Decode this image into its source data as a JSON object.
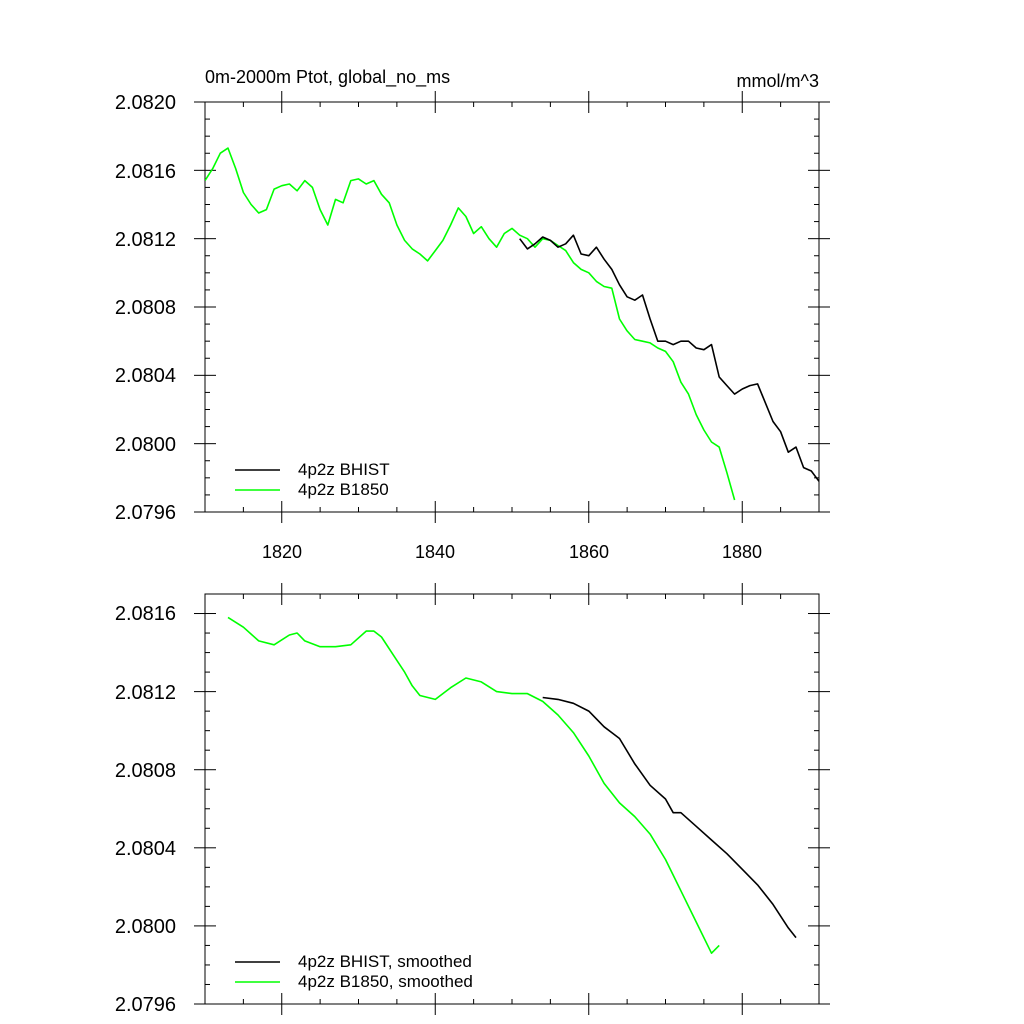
{
  "chart_data": [
    {
      "type": "line",
      "title_left": "0m-2000m Ptot, global_no_ms",
      "title_right": "mmol/m^3",
      "xlim": [
        1810,
        1890
      ],
      "ylim": [
        2.0796,
        2.082
      ],
      "xticks": [
        1820,
        1840,
        1860,
        1880
      ],
      "xtick_labels": [
        "1820",
        "1840",
        "1860",
        "1880"
      ],
      "yticks": [
        2.0796,
        2.08,
        2.0804,
        2.0808,
        2.0812,
        2.0816,
        2.082
      ],
      "ytick_labels": [
        "2.0796",
        "2.0800",
        "2.0804",
        "2.0808",
        "2.0812",
        "2.0816",
        "2.0820"
      ],
      "legend_position": "bottom-left",
      "series": [
        {
          "name": "4p2z BHIST",
          "color": "#000000",
          "x": [
            1851,
            1852,
            1853,
            1854,
            1855,
            1856,
            1857,
            1858,
            1859,
            1860,
            1861,
            1862,
            1863,
            1864,
            1865,
            1866,
            1867,
            1868,
            1869,
            1870,
            1871,
            1872,
            1873,
            1874,
            1875,
            1876,
            1877,
            1878,
            1879,
            1880,
            1881,
            1882,
            1883,
            1884,
            1885,
            1886,
            1887,
            1888,
            1889,
            1890
          ],
          "y": [
            2.0812,
            2.08114,
            2.08117,
            2.08121,
            2.08119,
            2.08115,
            2.08117,
            2.08122,
            2.08111,
            2.0811,
            2.08115,
            2.08108,
            2.08102,
            2.08093,
            2.08086,
            2.08084,
            2.08087,
            2.08073,
            2.0806,
            2.0806,
            2.08058,
            2.0806,
            2.0806,
            2.08056,
            2.08055,
            2.08058,
            2.08039,
            2.08034,
            2.08029,
            2.08032,
            2.08034,
            2.08035,
            2.08024,
            2.08013,
            2.08007,
            2.07995,
            2.07998,
            2.07986,
            2.07984,
            2.07978
          ]
        },
        {
          "name": "4p2z B1850",
          "color": "#00ff00",
          "x": [
            1810,
            1811,
            1812,
            1813,
            1814,
            1815,
            1816,
            1817,
            1818,
            1819,
            1820,
            1821,
            1822,
            1823,
            1824,
            1825,
            1826,
            1827,
            1828,
            1829,
            1830,
            1831,
            1832,
            1833,
            1834,
            1835,
            1836,
            1837,
            1838,
            1839,
            1840,
            1841,
            1842,
            1843,
            1844,
            1845,
            1846,
            1847,
            1848,
            1849,
            1850,
            1851,
            1852,
            1853,
            1854,
            1855,
            1856,
            1857,
            1858,
            1859,
            1860,
            1861,
            1862,
            1863,
            1864,
            1865,
            1866,
            1867,
            1868,
            1869,
            1870,
            1871,
            1872,
            1873,
            1874,
            1875,
            1876,
            1877,
            1878,
            1879
          ],
          "y": [
            2.08154,
            2.08161,
            2.0817,
            2.08173,
            2.08161,
            2.08147,
            2.0814,
            2.08135,
            2.08137,
            2.08149,
            2.08151,
            2.08152,
            2.08148,
            2.08154,
            2.0815,
            2.08137,
            2.08128,
            2.08143,
            2.08141,
            2.08154,
            2.08155,
            2.08152,
            2.08154,
            2.08146,
            2.08141,
            2.08128,
            2.08119,
            2.08114,
            2.08111,
            2.08107,
            2.08113,
            2.08119,
            2.08128,
            2.08138,
            2.08133,
            2.08123,
            2.08127,
            2.0812,
            2.08115,
            2.08123,
            2.08126,
            2.08122,
            2.0812,
            2.08115,
            2.0812,
            2.08119,
            2.08116,
            2.08113,
            2.08106,
            2.08102,
            2.081,
            2.08095,
            2.08092,
            2.08091,
            2.08073,
            2.08066,
            2.08061,
            2.0806,
            2.08059,
            2.08056,
            2.08054,
            2.08048,
            2.08036,
            2.08029,
            2.08017,
            2.08008,
            2.08001,
            2.07998,
            2.07983,
            2.07967
          ]
        }
      ]
    },
    {
      "type": "line",
      "xlim": [
        1810,
        1890
      ],
      "ylim": [
        2.0796,
        2.0817
      ],
      "xticks": [
        1820,
        1840,
        1860,
        1880
      ],
      "yticks": [
        2.0796,
        2.08,
        2.0804,
        2.0808,
        2.0812,
        2.0816
      ],
      "ytick_labels": [
        "2.0796",
        "2.0800",
        "2.0804",
        "2.0808",
        "2.0812",
        "2.0816"
      ],
      "legend_position": "bottom-left",
      "series": [
        {
          "name": "4p2z BHIST, smoothed",
          "color": "#000000",
          "x": [
            1854,
            1856,
            1858,
            1860,
            1862,
            1863,
            1864,
            1866,
            1868,
            1870,
            1871,
            1872,
            1874,
            1876,
            1878,
            1880,
            1882,
            1884,
            1886,
            1887
          ],
          "y": [
            2.08117,
            2.08116,
            2.08114,
            2.0811,
            2.08102,
            2.08099,
            2.08096,
            2.08083,
            2.08072,
            2.08065,
            2.08058,
            2.08058,
            2.08051,
            2.08044,
            2.08037,
            2.08029,
            2.08021,
            2.08011,
            2.07999,
            2.07994
          ]
        },
        {
          "name": "4p2z B1850, smoothed",
          "color": "#00ff00",
          "x": [
            1813,
            1815,
            1817,
            1819,
            1821,
            1822,
            1823,
            1825,
            1827,
            1829,
            1831,
            1832,
            1833,
            1835,
            1836,
            1837,
            1838,
            1840,
            1842,
            1844,
            1846,
            1848,
            1850,
            1852,
            1854,
            1856,
            1858,
            1860,
            1862,
            1864,
            1866,
            1868,
            1870,
            1872,
            1874,
            1876,
            1877
          ],
          "y": [
            2.08158,
            2.08153,
            2.08146,
            2.08144,
            2.08149,
            2.0815,
            2.08146,
            2.08143,
            2.08143,
            2.08144,
            2.08151,
            2.08151,
            2.08148,
            2.08136,
            2.0813,
            2.08123,
            2.08118,
            2.08116,
            2.08122,
            2.08127,
            2.08125,
            2.0812,
            2.08119,
            2.08119,
            2.08115,
            2.08108,
            2.08099,
            2.08087,
            2.08073,
            2.08063,
            2.08056,
            2.08047,
            2.08034,
            2.08018,
            2.08002,
            2.07986,
            2.0799
          ]
        }
      ]
    }
  ]
}
